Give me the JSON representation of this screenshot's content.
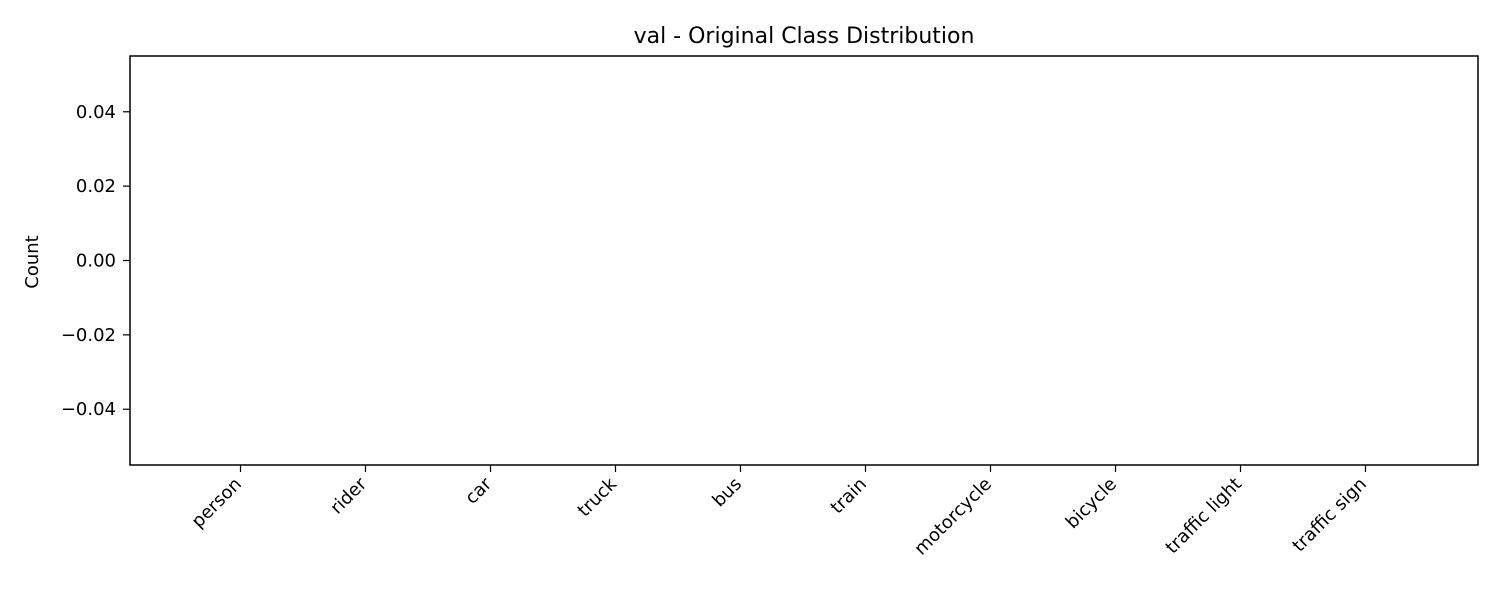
{
  "chart_data": {
    "type": "bar",
    "title": "val - Original Class Distribution",
    "xlabel": "",
    "ylabel": "Count",
    "categories": [
      "person",
      "rider",
      "car",
      "truck",
      "bus",
      "train",
      "motorcycle",
      "bicycle",
      "traffic light",
      "traffic sign"
    ],
    "values": [
      0,
      0,
      0,
      0,
      0,
      0,
      0,
      0,
      0,
      0
    ],
    "ylim": [
      -0.055,
      0.055
    ],
    "yticks": [
      0.04,
      0.02,
      0.0,
      -0.02,
      -0.04
    ],
    "ytick_labels": [
      "0.04",
      "0.02",
      "0.00",
      "−0.02",
      "−0.04"
    ],
    "grid": false,
    "legend": "none",
    "bar_color": "#1f77b4"
  }
}
